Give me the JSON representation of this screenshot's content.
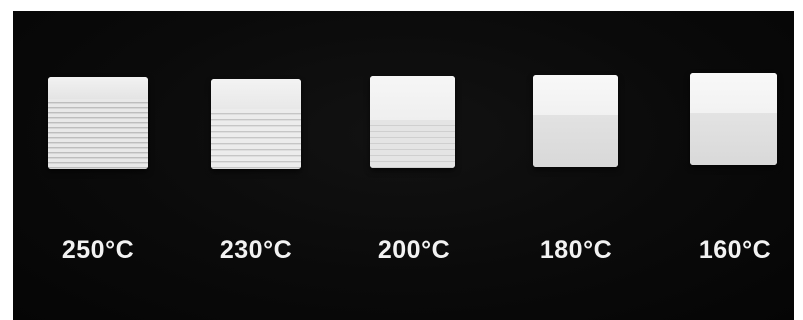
{
  "labels": {
    "t250": "250°C",
    "t230": "230°C",
    "t200": "200°C",
    "t180": "180°C",
    "t160": "160°C"
  },
  "colors": {
    "background": "#0a0a0a",
    "cube": "#ececec",
    "label_text": "#f2f2f2"
  }
}
